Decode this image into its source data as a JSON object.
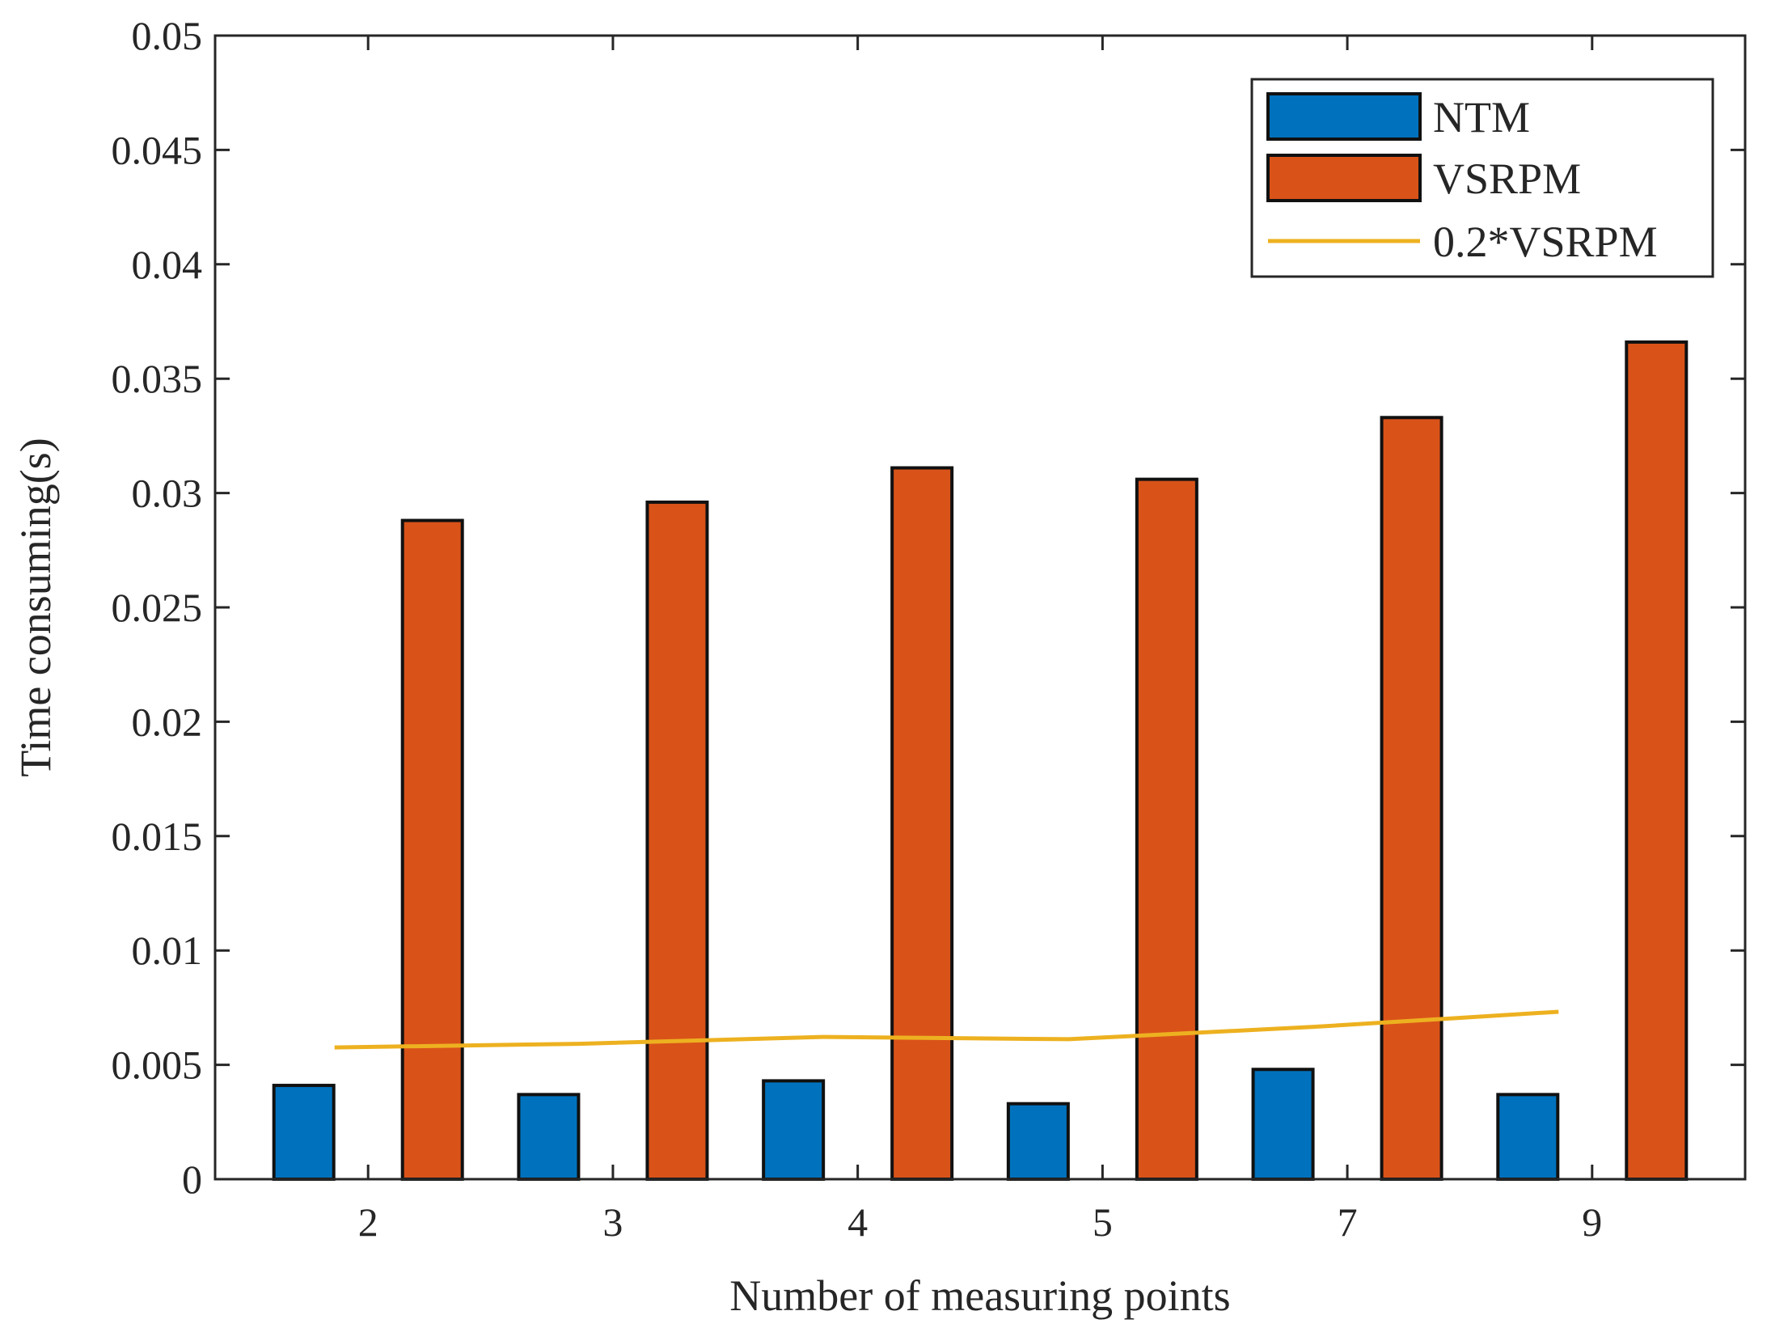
{
  "chart_data": {
    "type": "bar",
    "title": "",
    "xlabel": "Number of measuring points",
    "ylabel": "Time consuming(s)",
    "categories": [
      "2",
      "3",
      "4",
      "5",
      "7",
      "9"
    ],
    "ylim": [
      0,
      0.05
    ],
    "yticks": [
      "0",
      "0.005",
      "0.01",
      "0.015",
      "0.02",
      "0.025",
      "0.03",
      "0.035",
      "0.04",
      "0.045",
      "0.05"
    ],
    "grid": false,
    "legend_position": "top-right",
    "series": [
      {
        "name": "NTM",
        "kind": "bar",
        "color": "#0072BD",
        "values": [
          0.0041,
          0.0037,
          0.0043,
          0.0033,
          0.0048,
          0.0037
        ]
      },
      {
        "name": "VSRPM",
        "kind": "bar",
        "color": "#D95319",
        "values": [
          0.0288,
          0.0296,
          0.0311,
          0.0306,
          0.0333,
          0.0366
        ]
      },
      {
        "name": "0.2*VSRPM",
        "kind": "line",
        "color": "#EDB120",
        "values": [
          0.00576,
          0.00592,
          0.00622,
          0.00612,
          0.00666,
          0.00732
        ]
      }
    ]
  }
}
